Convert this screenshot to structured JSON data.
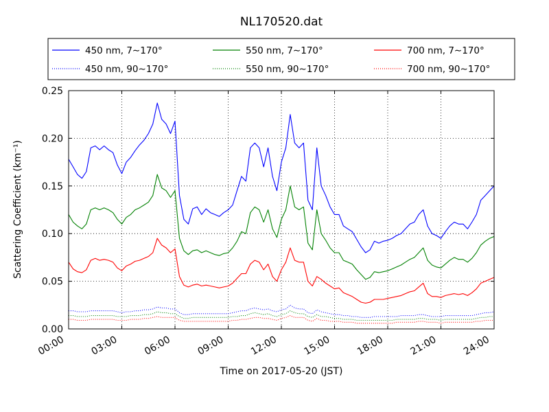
{
  "chart_data": {
    "type": "line",
    "title": "NL170520.dat",
    "xlabel": "Time on 2017-05-20 (JST)",
    "ylabel": "Scattering Coefficient (km⁻¹)",
    "x_unit": "hours (JST)",
    "xlim": [
      0,
      24
    ],
    "ylim": [
      0,
      0.25
    ],
    "xticks": [
      0,
      3,
      6,
      9,
      12,
      15,
      18,
      21,
      24
    ],
    "xtick_labels": [
      "00:00",
      "03:00",
      "06:00",
      "09:00",
      "12:00",
      "15:00",
      "18:00",
      "21:00",
      "24:00"
    ],
    "yticks": [
      0.0,
      0.05,
      0.1,
      0.15,
      0.2,
      0.25
    ],
    "ytick_labels": [
      "0.00",
      "0.05",
      "0.10",
      "0.15",
      "0.20",
      "0.25"
    ],
    "grid": true,
    "legend_position": "top, above plot",
    "x": [
      0,
      0.25,
      0.5,
      0.75,
      1,
      1.25,
      1.5,
      1.75,
      2,
      2.25,
      2.5,
      2.75,
      3,
      3.25,
      3.5,
      3.75,
      4,
      4.25,
      4.5,
      4.75,
      5,
      5.25,
      5.5,
      5.75,
      6,
      6.25,
      6.5,
      6.75,
      7,
      7.25,
      7.5,
      7.75,
      8,
      8.25,
      8.5,
      8.75,
      9,
      9.25,
      9.5,
      9.75,
      10,
      10.25,
      10.5,
      10.75,
      11,
      11.25,
      11.5,
      11.75,
      12,
      12.25,
      12.5,
      12.75,
      13,
      13.25,
      13.5,
      13.75,
      14,
      14.25,
      14.5,
      14.75,
      15,
      15.25,
      15.5,
      15.75,
      16,
      16.25,
      16.5,
      16.75,
      17,
      17.25,
      17.5,
      17.75,
      18,
      18.25,
      18.5,
      18.75,
      19,
      19.25,
      19.5,
      19.75,
      20,
      20.25,
      20.5,
      20.75,
      21,
      21.25,
      21.5,
      21.75,
      22,
      22.25,
      22.5,
      22.75,
      23,
      23.25,
      23.5,
      23.75,
      24
    ],
    "series": [
      {
        "name": "450 nm, 7∼170°",
        "color": "#0000ff",
        "style": "solid",
        "values": [
          0.178,
          0.17,
          0.162,
          0.158,
          0.165,
          0.19,
          0.192,
          0.188,
          0.192,
          0.188,
          0.185,
          0.172,
          0.163,
          0.175,
          0.18,
          0.187,
          0.193,
          0.198,
          0.205,
          0.215,
          0.237,
          0.22,
          0.215,
          0.205,
          0.218,
          0.14,
          0.115,
          0.11,
          0.126,
          0.128,
          0.12,
          0.126,
          0.122,
          0.12,
          0.118,
          0.122,
          0.125,
          0.13,
          0.145,
          0.16,
          0.155,
          0.19,
          0.195,
          0.19,
          0.17,
          0.19,
          0.16,
          0.145,
          0.175,
          0.19,
          0.225,
          0.195,
          0.19,
          0.195,
          0.135,
          0.125,
          0.19,
          0.15,
          0.14,
          0.128,
          0.12,
          0.12,
          0.108,
          0.105,
          0.102,
          0.094,
          0.086,
          0.08,
          0.083,
          0.092,
          0.09,
          0.092,
          0.093,
          0.095,
          0.098,
          0.1,
          0.105,
          0.11,
          0.112,
          0.12,
          0.125,
          0.108,
          0.1,
          0.098,
          0.095,
          0.102,
          0.108,
          0.112,
          0.11,
          0.11,
          0.105,
          0.112,
          0.12,
          0.135,
          0.14,
          0.145,
          0.15
        ]
      },
      {
        "name": "450 nm, 90∼170°",
        "color": "#0000ff",
        "style": "dotted",
        "values": [
          0.019,
          0.019,
          0.018,
          0.018,
          0.018,
          0.019,
          0.019,
          0.019,
          0.019,
          0.019,
          0.019,
          0.018,
          0.017,
          0.018,
          0.018,
          0.019,
          0.019,
          0.02,
          0.02,
          0.021,
          0.023,
          0.022,
          0.022,
          0.021,
          0.021,
          0.017,
          0.015,
          0.015,
          0.016,
          0.016,
          0.016,
          0.016,
          0.016,
          0.016,
          0.016,
          0.016,
          0.016,
          0.017,
          0.018,
          0.019,
          0.019,
          0.021,
          0.022,
          0.021,
          0.02,
          0.021,
          0.019,
          0.018,
          0.02,
          0.021,
          0.025,
          0.022,
          0.021,
          0.021,
          0.017,
          0.016,
          0.02,
          0.018,
          0.017,
          0.016,
          0.015,
          0.015,
          0.014,
          0.014,
          0.013,
          0.013,
          0.012,
          0.012,
          0.012,
          0.013,
          0.013,
          0.013,
          0.013,
          0.013,
          0.013,
          0.014,
          0.014,
          0.014,
          0.014,
          0.015,
          0.015,
          0.014,
          0.013,
          0.013,
          0.013,
          0.014,
          0.014,
          0.014,
          0.014,
          0.014,
          0.014,
          0.014,
          0.015,
          0.016,
          0.017,
          0.017,
          0.018
        ]
      },
      {
        "name": "550 nm, 7∼170°",
        "color": "#008000",
        "style": "solid",
        "values": [
          0.12,
          0.112,
          0.108,
          0.105,
          0.11,
          0.125,
          0.127,
          0.125,
          0.127,
          0.125,
          0.122,
          0.115,
          0.11,
          0.117,
          0.12,
          0.125,
          0.127,
          0.13,
          0.133,
          0.14,
          0.162,
          0.148,
          0.145,
          0.138,
          0.145,
          0.095,
          0.082,
          0.078,
          0.082,
          0.083,
          0.08,
          0.082,
          0.08,
          0.078,
          0.077,
          0.079,
          0.08,
          0.085,
          0.092,
          0.102,
          0.1,
          0.122,
          0.128,
          0.125,
          0.112,
          0.125,
          0.105,
          0.096,
          0.115,
          0.125,
          0.15,
          0.128,
          0.125,
          0.128,
          0.09,
          0.083,
          0.125,
          0.1,
          0.093,
          0.085,
          0.08,
          0.08,
          0.072,
          0.07,
          0.068,
          0.062,
          0.057,
          0.052,
          0.054,
          0.06,
          0.059,
          0.06,
          0.061,
          0.063,
          0.065,
          0.067,
          0.07,
          0.073,
          0.075,
          0.08,
          0.085,
          0.072,
          0.067,
          0.065,
          0.064,
          0.068,
          0.072,
          0.075,
          0.073,
          0.073,
          0.07,
          0.074,
          0.08,
          0.088,
          0.092,
          0.095,
          0.097
        ]
      },
      {
        "name": "550 nm, 90∼170°",
        "color": "#008000",
        "style": "dotted",
        "values": [
          0.014,
          0.014,
          0.013,
          0.013,
          0.013,
          0.014,
          0.014,
          0.014,
          0.014,
          0.014,
          0.014,
          0.013,
          0.013,
          0.013,
          0.014,
          0.014,
          0.014,
          0.015,
          0.015,
          0.016,
          0.018,
          0.017,
          0.017,
          0.016,
          0.016,
          0.013,
          0.011,
          0.011,
          0.012,
          0.012,
          0.012,
          0.012,
          0.012,
          0.012,
          0.012,
          0.012,
          0.012,
          0.013,
          0.013,
          0.014,
          0.014,
          0.016,
          0.017,
          0.016,
          0.015,
          0.016,
          0.014,
          0.013,
          0.015,
          0.016,
          0.019,
          0.017,
          0.016,
          0.016,
          0.013,
          0.012,
          0.015,
          0.013,
          0.013,
          0.012,
          0.011,
          0.011,
          0.01,
          0.01,
          0.01,
          0.009,
          0.009,
          0.009,
          0.009,
          0.009,
          0.009,
          0.009,
          0.009,
          0.009,
          0.01,
          0.01,
          0.01,
          0.01,
          0.01,
          0.011,
          0.011,
          0.01,
          0.01,
          0.01,
          0.009,
          0.01,
          0.01,
          0.01,
          0.01,
          0.01,
          0.01,
          0.01,
          0.011,
          0.012,
          0.012,
          0.013,
          0.013
        ]
      },
      {
        "name": "700 nm, 7∼170°",
        "color": "#ff0000",
        "style": "solid",
        "values": [
          0.07,
          0.063,
          0.06,
          0.059,
          0.062,
          0.072,
          0.074,
          0.072,
          0.073,
          0.072,
          0.07,
          0.064,
          0.061,
          0.066,
          0.068,
          0.071,
          0.072,
          0.074,
          0.076,
          0.08,
          0.095,
          0.088,
          0.085,
          0.08,
          0.084,
          0.055,
          0.046,
          0.044,
          0.046,
          0.047,
          0.045,
          0.046,
          0.045,
          0.044,
          0.043,
          0.044,
          0.045,
          0.048,
          0.053,
          0.058,
          0.058,
          0.068,
          0.072,
          0.07,
          0.062,
          0.068,
          0.055,
          0.05,
          0.062,
          0.07,
          0.085,
          0.072,
          0.07,
          0.07,
          0.05,
          0.045,
          0.055,
          0.052,
          0.048,
          0.045,
          0.042,
          0.043,
          0.038,
          0.036,
          0.034,
          0.031,
          0.028,
          0.027,
          0.028,
          0.031,
          0.031,
          0.031,
          0.032,
          0.033,
          0.034,
          0.035,
          0.037,
          0.039,
          0.04,
          0.044,
          0.048,
          0.037,
          0.034,
          0.034,
          0.033,
          0.035,
          0.036,
          0.037,
          0.036,
          0.037,
          0.035,
          0.038,
          0.042,
          0.048,
          0.05,
          0.052,
          0.054
        ]
      },
      {
        "name": "700 nm, 90∼170°",
        "color": "#ff0000",
        "style": "dotted",
        "values": [
          0.01,
          0.01,
          0.009,
          0.009,
          0.009,
          0.01,
          0.01,
          0.01,
          0.01,
          0.01,
          0.01,
          0.009,
          0.009,
          0.009,
          0.01,
          0.01,
          0.01,
          0.011,
          0.011,
          0.012,
          0.013,
          0.012,
          0.012,
          0.012,
          0.012,
          0.009,
          0.008,
          0.008,
          0.008,
          0.008,
          0.008,
          0.008,
          0.008,
          0.008,
          0.008,
          0.008,
          0.008,
          0.009,
          0.009,
          0.01,
          0.01,
          0.011,
          0.012,
          0.012,
          0.011,
          0.011,
          0.01,
          0.009,
          0.011,
          0.012,
          0.014,
          0.012,
          0.012,
          0.012,
          0.009,
          0.008,
          0.011,
          0.009,
          0.009,
          0.008,
          0.008,
          0.008,
          0.007,
          0.007,
          0.007,
          0.006,
          0.006,
          0.006,
          0.006,
          0.006,
          0.006,
          0.006,
          0.006,
          0.006,
          0.007,
          0.007,
          0.007,
          0.007,
          0.007,
          0.008,
          0.008,
          0.007,
          0.007,
          0.007,
          0.006,
          0.007,
          0.007,
          0.007,
          0.007,
          0.007,
          0.007,
          0.007,
          0.008,
          0.008,
          0.009,
          0.009,
          0.009
        ]
      }
    ]
  }
}
